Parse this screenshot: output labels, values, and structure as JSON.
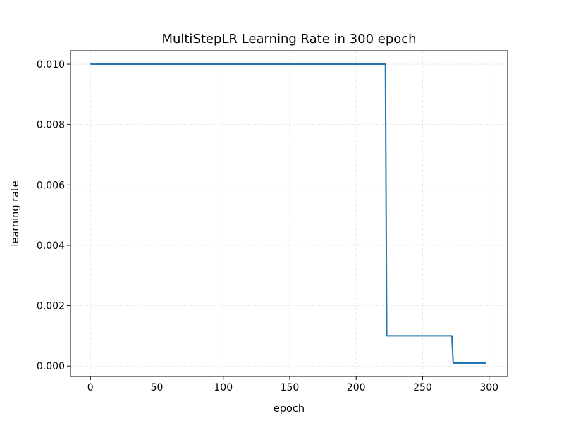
{
  "chart_data": {
    "type": "line",
    "title": "MultiStepLR Learning Rate in 300 epoch",
    "xlabel": "epoch",
    "ylabel": "learning rate",
    "xlim": [
      -15.0,
      313.95
    ],
    "ylim": [
      -0.000345,
      0.010445
    ],
    "xticks": [
      0,
      50,
      100,
      150,
      200,
      250,
      300
    ],
    "xtick_labels": [
      "0",
      "50",
      "100",
      "150",
      "200",
      "250",
      "300"
    ],
    "yticks": [
      0.0,
      0.002,
      0.004,
      0.006,
      0.008,
      0.01
    ],
    "ytick_labels": [
      "0.000",
      "0.002",
      "0.004",
      "0.006",
      "0.008",
      "0.010"
    ],
    "grid": true,
    "legend": "none",
    "series": [
      {
        "color": "#1f77b4",
        "x": [
          0,
          222,
          223,
          272,
          273,
          298
        ],
        "y": [
          0.01,
          0.01,
          0.001,
          0.001,
          0.0001,
          0.0001
        ]
      }
    ]
  }
}
